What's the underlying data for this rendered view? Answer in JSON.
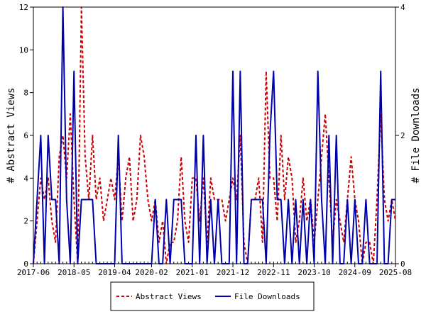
{
  "chart_data": {
    "type": "line",
    "ylabel_left": "# Abstract Views",
    "ylabel_right": "# File Downloads",
    "ylim_left": [
      0,
      12
    ],
    "ylim_right": [
      0,
      4
    ],
    "yticks_left": [
      0,
      2,
      4,
      6,
      8,
      10,
      12
    ],
    "yticks_right": [
      0,
      2,
      4
    ],
    "xlim": [
      "2017-06",
      "2025-08"
    ],
    "xtick_labels": [
      "2017-06",
      "2018-05",
      "2019-04",
      "2020-02",
      "2021-01",
      "2021-12",
      "2022-11",
      "2023-10",
      "2024-09",
      "2025-08"
    ],
    "legend_position": "bottom",
    "series": [
      {
        "name": "Abstract Views",
        "axis": "left",
        "color": "#cc0000",
        "style": "dashed",
        "points": [
          [
            "2017-06",
            0
          ],
          [
            "2017-07",
            2
          ],
          [
            "2017-08",
            4
          ],
          [
            "2017-09",
            3
          ],
          [
            "2017-10",
            4
          ],
          [
            "2017-11",
            2
          ],
          [
            "2017-12",
            1
          ],
          [
            "2018-01",
            5
          ],
          [
            "2018-02",
            6
          ],
          [
            "2018-03",
            4
          ],
          [
            "2018-04",
            7
          ],
          [
            "2018-05",
            3
          ],
          [
            "2018-06",
            0
          ],
          [
            "2018-07",
            12
          ],
          [
            "2018-08",
            5
          ],
          [
            "2018-09",
            3
          ],
          [
            "2018-10",
            6
          ],
          [
            "2018-11",
            3
          ],
          [
            "2018-12",
            4
          ],
          [
            "2019-01",
            2
          ],
          [
            "2019-02",
            3
          ],
          [
            "2019-03",
            4
          ],
          [
            "2019-04",
            3
          ],
          [
            "2019-05",
            5
          ],
          [
            "2019-06",
            2
          ],
          [
            "2019-07",
            4
          ],
          [
            "2019-08",
            5
          ],
          [
            "2019-09",
            2
          ],
          [
            "2019-10",
            3
          ],
          [
            "2019-11",
            6
          ],
          [
            "2019-12",
            5
          ],
          [
            "2020-01",
            3
          ],
          [
            "2020-02",
            2
          ],
          [
            "2020-03",
            3
          ],
          [
            "2020-04",
            1
          ],
          [
            "2020-05",
            2
          ],
          [
            "2020-06",
            0
          ],
          [
            "2020-07",
            1
          ],
          [
            "2020-08",
            1
          ],
          [
            "2020-09",
            2
          ],
          [
            "2020-10",
            5
          ],
          [
            "2020-11",
            2
          ],
          [
            "2020-12",
            1
          ],
          [
            "2021-01",
            4
          ],
          [
            "2021-02",
            4
          ],
          [
            "2021-03",
            2
          ],
          [
            "2021-04",
            4
          ],
          [
            "2021-05",
            1
          ],
          [
            "2021-06",
            4
          ],
          [
            "2021-07",
            3
          ],
          [
            "2021-08",
            3
          ],
          [
            "2021-09",
            3
          ],
          [
            "2021-10",
            2
          ],
          [
            "2021-11",
            3
          ],
          [
            "2021-12",
            4
          ],
          [
            "2022-01",
            3
          ],
          [
            "2022-02",
            6
          ],
          [
            "2022-03",
            1
          ],
          [
            "2022-04",
            0
          ],
          [
            "2022-05",
            3
          ],
          [
            "2022-06",
            3
          ],
          [
            "2022-07",
            4
          ],
          [
            "2022-08",
            1
          ],
          [
            "2022-09",
            9
          ],
          [
            "2022-10",
            4
          ],
          [
            "2022-11",
            4
          ],
          [
            "2022-12",
            2
          ],
          [
            "2023-01",
            6
          ],
          [
            "2023-02",
            3
          ],
          [
            "2023-03",
            5
          ],
          [
            "2023-04",
            4
          ],
          [
            "2023-05",
            1
          ],
          [
            "2023-06",
            2
          ],
          [
            "2023-07",
            4
          ],
          [
            "2023-08",
            2
          ],
          [
            "2023-09",
            3
          ],
          [
            "2023-10",
            1
          ],
          [
            "2023-11",
            3
          ],
          [
            "2023-12",
            5
          ],
          [
            "2024-01",
            7
          ],
          [
            "2024-02",
            4
          ],
          [
            "2024-03",
            1
          ],
          [
            "2024-04",
            3
          ],
          [
            "2024-05",
            2
          ],
          [
            "2024-06",
            1
          ],
          [
            "2024-07",
            3
          ],
          [
            "2024-08",
            5
          ],
          [
            "2024-09",
            3
          ],
          [
            "2024-10",
            2
          ],
          [
            "2024-11",
            0
          ],
          [
            "2024-12",
            1
          ],
          [
            "2025-01",
            1
          ],
          [
            "2025-02",
            0
          ],
          [
            "2025-03",
            3
          ],
          [
            "2025-04",
            7
          ],
          [
            "2025-05",
            3
          ],
          [
            "2025-06",
            2
          ],
          [
            "2025-07",
            3
          ],
          [
            "2025-08",
            2
          ]
        ]
      },
      {
        "name": "File Downloads",
        "axis": "right",
        "color": "#0000aa",
        "style": "solid",
        "points": [
          [
            "2017-06",
            0
          ],
          [
            "2017-07",
            1
          ],
          [
            "2017-08",
            2
          ],
          [
            "2017-09",
            0
          ],
          [
            "2017-10",
            2
          ],
          [
            "2017-11",
            1
          ],
          [
            "2017-12",
            1
          ],
          [
            "2018-01",
            0
          ],
          [
            "2018-02",
            4
          ],
          [
            "2018-03",
            1
          ],
          [
            "2018-04",
            0
          ],
          [
            "2018-05",
            3
          ],
          [
            "2018-06",
            0
          ],
          [
            "2018-07",
            1
          ],
          [
            "2018-08",
            1
          ],
          [
            "2018-09",
            1
          ],
          [
            "2018-10",
            1
          ],
          [
            "2018-11",
            0
          ],
          [
            "2018-12",
            0
          ],
          [
            "2019-01",
            0
          ],
          [
            "2019-02",
            0
          ],
          [
            "2019-03",
            0
          ],
          [
            "2019-04",
            0
          ],
          [
            "2019-05",
            2
          ],
          [
            "2019-06",
            0
          ],
          [
            "2019-07",
            0
          ],
          [
            "2019-08",
            0
          ],
          [
            "2019-09",
            0
          ],
          [
            "2019-10",
            0
          ],
          [
            "2019-11",
            0
          ],
          [
            "2019-12",
            0
          ],
          [
            "2020-01",
            0
          ],
          [
            "2020-02",
            0
          ],
          [
            "2020-03",
            1
          ],
          [
            "2020-04",
            0
          ],
          [
            "2020-05",
            0
          ],
          [
            "2020-06",
            1
          ],
          [
            "2020-07",
            0
          ],
          [
            "2020-08",
            1
          ],
          [
            "2020-09",
            1
          ],
          [
            "2020-10",
            1
          ],
          [
            "2020-11",
            0
          ],
          [
            "2020-12",
            0
          ],
          [
            "2021-01",
            0
          ],
          [
            "2021-02",
            2
          ],
          [
            "2021-03",
            0
          ],
          [
            "2021-04",
            2
          ],
          [
            "2021-05",
            0
          ],
          [
            "2021-06",
            1
          ],
          [
            "2021-07",
            0
          ],
          [
            "2021-08",
            1
          ],
          [
            "2021-09",
            0
          ],
          [
            "2021-10",
            0
          ],
          [
            "2021-11",
            0
          ],
          [
            "2021-12",
            3
          ],
          [
            "2022-01",
            0
          ],
          [
            "2022-02",
            3
          ],
          [
            "2022-03",
            0
          ],
          [
            "2022-04",
            0
          ],
          [
            "2022-05",
            1
          ],
          [
            "2022-06",
            1
          ],
          [
            "2022-07",
            1
          ],
          [
            "2022-08",
            1
          ],
          [
            "2022-09",
            0
          ],
          [
            "2022-10",
            2
          ],
          [
            "2022-11",
            3
          ],
          [
            "2022-12",
            1
          ],
          [
            "2023-01",
            1
          ],
          [
            "2023-02",
            0
          ],
          [
            "2023-03",
            1
          ],
          [
            "2023-04",
            0
          ],
          [
            "2023-05",
            1
          ],
          [
            "2023-06",
            0
          ],
          [
            "2023-07",
            1
          ],
          [
            "2023-08",
            0
          ],
          [
            "2023-09",
            1
          ],
          [
            "2023-10",
            0
          ],
          [
            "2023-11",
            3
          ],
          [
            "2023-12",
            1
          ],
          [
            "2024-01",
            0
          ],
          [
            "2024-02",
            2
          ],
          [
            "2024-03",
            0
          ],
          [
            "2024-04",
            2
          ],
          [
            "2024-05",
            0
          ],
          [
            "2024-06",
            0
          ],
          [
            "2024-07",
            1
          ],
          [
            "2024-08",
            0
          ],
          [
            "2024-09",
            1
          ],
          [
            "2024-10",
            0
          ],
          [
            "2024-11",
            0
          ],
          [
            "2024-12",
            1
          ],
          [
            "2025-01",
            0
          ],
          [
            "2025-02",
            0
          ],
          [
            "2025-03",
            0
          ],
          [
            "2025-04",
            3
          ],
          [
            "2025-05",
            0
          ],
          [
            "2025-06",
            0
          ],
          [
            "2025-07",
            1
          ],
          [
            "2025-08",
            1
          ]
        ]
      }
    ]
  }
}
